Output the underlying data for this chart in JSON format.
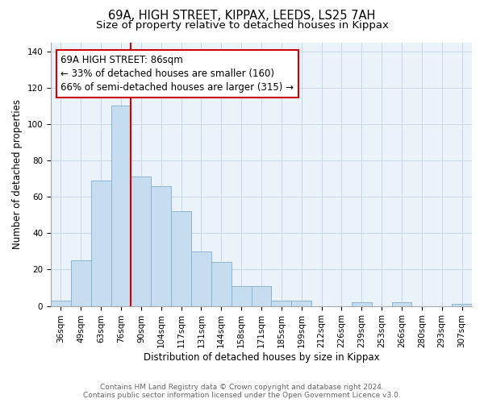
{
  "title_line1": "69A, HIGH STREET, KIPPAX, LEEDS, LS25 7AH",
  "title_line2": "Size of property relative to detached houses in Kippax",
  "xlabel": "Distribution of detached houses by size in Kippax",
  "ylabel": "Number of detached properties",
  "bar_labels": [
    "36sqm",
    "49sqm",
    "63sqm",
    "76sqm",
    "90sqm",
    "104sqm",
    "117sqm",
    "131sqm",
    "144sqm",
    "158sqm",
    "171sqm",
    "185sqm",
    "199sqm",
    "212sqm",
    "226sqm",
    "239sqm",
    "253sqm",
    "266sqm",
    "280sqm",
    "293sqm",
    "307sqm"
  ],
  "bar_values": [
    3,
    25,
    69,
    110,
    71,
    66,
    52,
    30,
    24,
    11,
    11,
    3,
    3,
    0,
    0,
    2,
    0,
    2,
    0,
    0,
    1
  ],
  "bar_color": "#c6ddef",
  "bar_edge_color": "#8ab4d4",
  "red_line_index": 3.5,
  "annotation_text": "69A HIGH STREET: 86sqm\n← 33% of detached houses are smaller (160)\n66% of semi-detached houses are larger (315) →",
  "annotation_box_color": "white",
  "annotation_box_edge_color": "#cc0000",
  "ylim": [
    0,
    145
  ],
  "yticks": [
    0,
    20,
    40,
    60,
    80,
    100,
    120,
    140
  ],
  "footer_line1": "Contains HM Land Registry data © Crown copyright and database right 2024.",
  "footer_line2": "Contains public sector information licensed under the Open Government Licence v3.0.",
  "title_fontsize": 10.5,
  "subtitle_fontsize": 9.5,
  "axis_label_fontsize": 8.5,
  "tick_fontsize": 7.5,
  "annotation_fontsize": 8.5,
  "footer_fontsize": 6.5,
  "bg_color": "#eaf2fa"
}
